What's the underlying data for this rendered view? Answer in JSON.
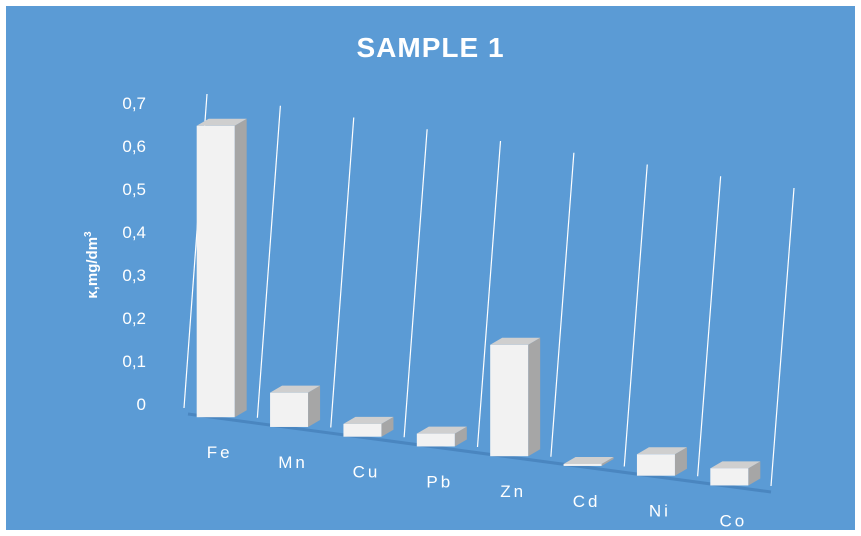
{
  "chart_data": {
    "type": "bar",
    "title": "SAMPLE 1",
    "ylabel_main": "κ,mg/dm",
    "ylabel_sup": "3",
    "categories": [
      "Fe",
      "Mn",
      "Cu",
      "Pb",
      "Zn",
      "Cd",
      "Ni",
      "Co"
    ],
    "values": [
      0.68,
      0.08,
      0.03,
      0.03,
      0.26,
      0.003,
      0.05,
      0.04
    ],
    "yticks": [
      "0",
      "0,1",
      "0,2",
      "0,3",
      "0,4",
      "0,5",
      "0,6",
      "0,7"
    ],
    "ylim": [
      0,
      0.7
    ],
    "grid": true,
    "colors": {
      "background": "#5b9bd5",
      "bar_front": "#f2f2f2",
      "bar_side": "#a6a6a6",
      "bar_top": "#cfcfcf",
      "grid": "#ffffff"
    }
  }
}
